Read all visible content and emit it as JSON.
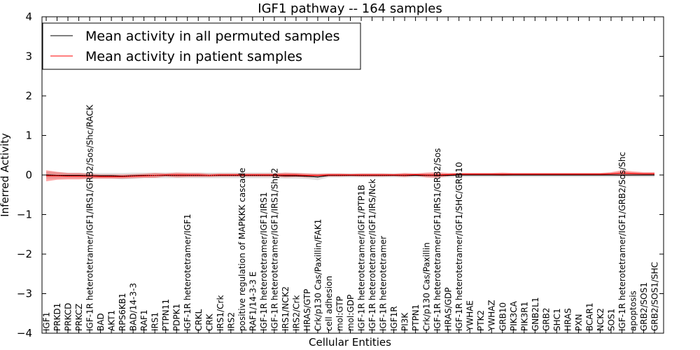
{
  "chart_data": {
    "type": "line",
    "title": "IGF1 pathway -- 164 samples",
    "xlabel": "Cellular Entities",
    "ylabel": "Inferred Activity",
    "ylim": [
      -4,
      4
    ],
    "yticks": [
      "4",
      "3",
      "2",
      "1",
      "0",
      "−1",
      "−2",
      "−3",
      "−4"
    ],
    "legend_position": "upper-left",
    "colors": {
      "permuted": "#000000",
      "patient": "#ff0000",
      "permuted_band": "#bbbbbb",
      "patient_band": "#ff0000"
    },
    "categories": [
      "IGF1",
      "PRKD1",
      "PRKCD",
      "PRKCZ",
      "IGF-1R heterotetramer/IGF1/IRS1/GRB2/Sos/Shc/RACK",
      "BAD",
      "AKT1",
      "RPS6KB1",
      "BAD/14-3-3",
      "RAF1",
      "IRS1",
      "PTPN11",
      "PDPK1",
      "IGF-1R heterotetramer/IGF1",
      "CRKL",
      "CRK",
      "IRS1/Crk",
      "IRS2",
      "positive regulation of MAPKKK cascade",
      "RAF1/14-3-3 E",
      "IGF-1R heterotetramer/IGF1/IRS1",
      "IGF-1R heterotetramer/IGF1/IRS1/Shp2",
      "IRS1/NCK2",
      "IRS2/Crk",
      "HRAS/GTP",
      "Crk/p130 Cas/Paxillin/FAK1",
      "cell adhesion",
      "mol:GTP",
      "mol:GDP",
      "IGF-1R heterotetramer/IGF1/PTP1B",
      "IGF-1R heterotetramer/IGF1/IRS/Nck",
      "IGF-1R heterotetramer",
      "IGF1R",
      "PI3K",
      "PTPN1",
      "Crk/p130 Cas/Paxillin",
      "IGF-1R heterotetramer/IGF1/IRS1/GRB2/Sos",
      "HRAS/GDP",
      "IGF-1R heterotetramer/IGF1/SHC/GRB10",
      "YWHAE",
      "PTK2",
      "YWHAZ",
      "GRB10",
      "PIK3CA",
      "PIK3R1",
      "GNB2L1",
      "GRB2",
      "SHC1",
      "HRAS",
      "PXN",
      "BCAR1",
      "NCK2",
      "SOS1",
      "IGF-1R heterotetramer/IGF1/GRB2/Sos/Shc",
      "apoptosis",
      "GRB2/SOS1",
      "GRB2/SOS1/SHC"
    ],
    "series": [
      {
        "name": "Mean activity in all permuted samples",
        "values": [
          0,
          -0.01,
          -0.01,
          -0.01,
          -0.02,
          -0.02,
          -0.02,
          -0.03,
          -0.02,
          -0.01,
          -0.01,
          -0.01,
          -0.01,
          -0.01,
          -0.01,
          -0.01,
          -0.01,
          -0.01,
          -0.01,
          -0.01,
          -0.01,
          -0.01,
          -0.02,
          -0.02,
          -0.03,
          -0.05,
          -0.01,
          -0.01,
          -0.01,
          -0.01,
          -0.01,
          -0.01,
          -0.01,
          -0.01,
          -0.01,
          -0.01,
          -0.01,
          -0.01,
          0,
          0,
          0,
          0,
          0,
          0,
          0,
          0,
          0,
          0,
          0,
          0,
          0,
          0,
          0,
          0,
          0,
          0,
          0
        ],
        "band": [
          0.09,
          0.08,
          0.07,
          0.07,
          0.07,
          0.07,
          0.07,
          0.08,
          0.08,
          0.07,
          0.07,
          0.07,
          0.07,
          0.07,
          0.07,
          0.07,
          0.07,
          0.07,
          0.07,
          0.07,
          0.07,
          0.07,
          0.07,
          0.07,
          0.07,
          0.08,
          0.05,
          0.05,
          0.05,
          0.05,
          0.05,
          0.05,
          0.05,
          0.05,
          0.05,
          0.05,
          0.05,
          0.05,
          0.05,
          0.05,
          0.05,
          0.05,
          0.05,
          0.05,
          0.05,
          0.05,
          0.05,
          0.05,
          0.05,
          0.05,
          0.05,
          0.05,
          0.05,
          0.05,
          0.05,
          0.05,
          0.05
        ]
      },
      {
        "name": "Mean activity in patient samples",
        "values": [
          -0.02,
          -0.02,
          -0.03,
          -0.03,
          -0.03,
          -0.04,
          -0.04,
          -0.04,
          -0.03,
          -0.02,
          -0.01,
          0,
          0,
          0,
          0,
          -0.01,
          0,
          0,
          0,
          0,
          0,
          0,
          0,
          0,
          -0.01,
          -0.01,
          0,
          0,
          0,
          0,
          0,
          0,
          0,
          0,
          0.01,
          0,
          0,
          0.01,
          0.02,
          0.02,
          0.02,
          0.02,
          0.02,
          0.02,
          0.02,
          0.02,
          0.02,
          0.02,
          0.02,
          0.02,
          0.02,
          0.02,
          0.03,
          0.05,
          0.04,
          0.03,
          0.03
        ],
        "band": [
          0.14,
          0.1,
          0.08,
          0.08,
          0.06,
          0.05,
          0.05,
          0.05,
          0.05,
          0.05,
          0.06,
          0.04,
          0.06,
          0.05,
          0.05,
          0.04,
          0.04,
          0.04,
          0.04,
          0.04,
          0.04,
          0.04,
          0.06,
          0.05,
          0.05,
          0.04,
          0.04,
          0.04,
          0.03,
          0.04,
          0.04,
          0.04,
          0.03,
          0.05,
          0.03,
          0.06,
          0.07,
          0.04,
          0.03,
          0.03,
          0.03,
          0.03,
          0.04,
          0.03,
          0.03,
          0.03,
          0.03,
          0.03,
          0.03,
          0.03,
          0.03,
          0.03,
          0.04,
          0.07,
          0.05,
          0.04,
          0.04
        ]
      }
    ]
  }
}
